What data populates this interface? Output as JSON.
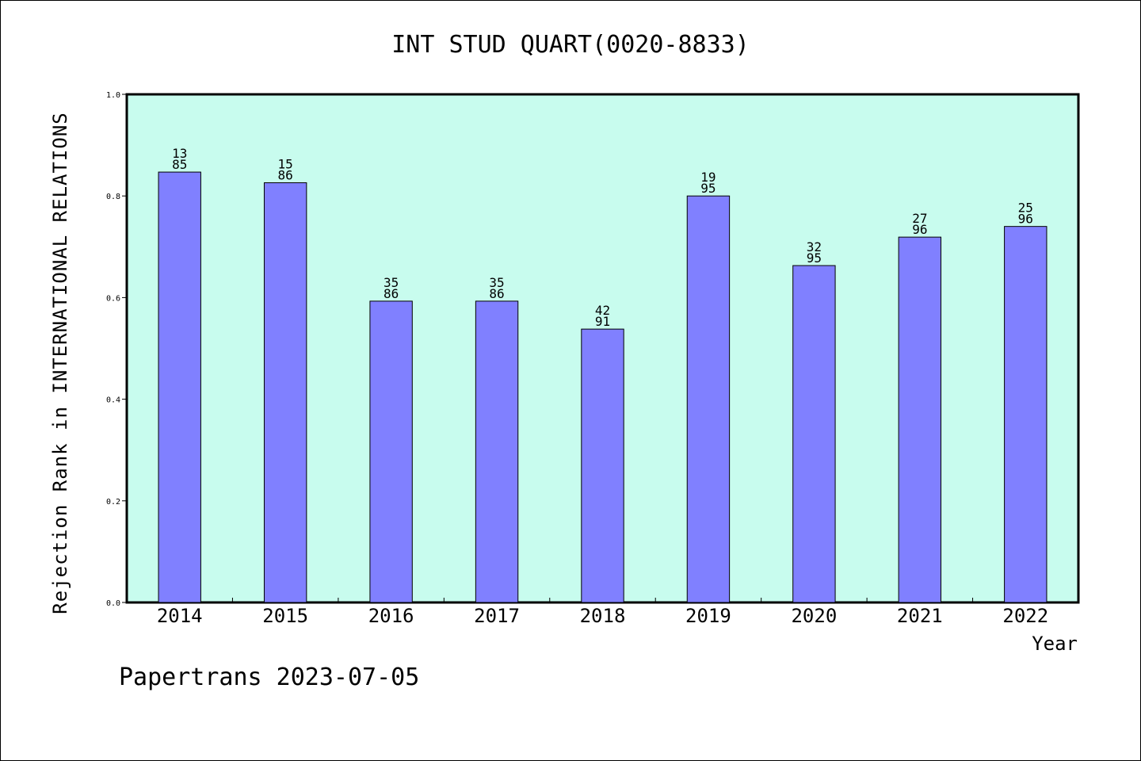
{
  "chart_data": {
    "type": "bar",
    "title": "INT STUD QUART(0020-8833)",
    "xlabel": "Year",
    "ylabel": "Rejection Rank in INTERNATIONAL RELATIONS",
    "ylim": [
      0,
      1.0
    ],
    "yticks": [
      "0.0",
      "0.2",
      "0.4",
      "0.6",
      "0.8",
      "1.0"
    ],
    "categories": [
      "2014",
      "2015",
      "2016",
      "2017",
      "2018",
      "2019",
      "2020",
      "2021",
      "2022"
    ],
    "values": [
      0.847,
      0.826,
      0.593,
      0.593,
      0.538,
      0.8,
      0.663,
      0.719,
      0.74
    ],
    "bar_labels": [
      [
        "13",
        "85"
      ],
      [
        "15",
        "86"
      ],
      [
        "35",
        "86"
      ],
      [
        "35",
        "86"
      ],
      [
        "42",
        "91"
      ],
      [
        "19",
        "95"
      ],
      [
        "32",
        "95"
      ],
      [
        "27",
        "96"
      ],
      [
        "25",
        "96"
      ]
    ],
    "grid": false,
    "colors": {
      "plot_background": "#c8fcee",
      "bar_fill": "#8080ff",
      "bar_stroke": "#000000"
    }
  },
  "footer": {
    "text": "Papertrans 2023-07-05"
  }
}
